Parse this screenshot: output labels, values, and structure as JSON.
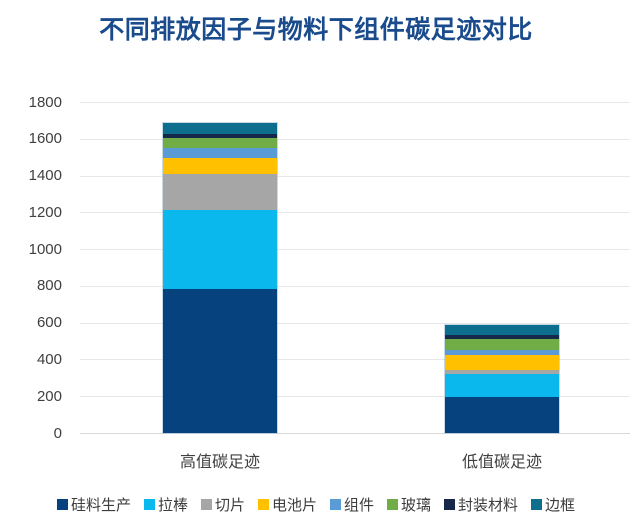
{
  "title": "不同排放因子与物料下组件碳足迹对比",
  "colors": {
    "title_text": "#1a4b8c",
    "axis_text": "#3f3f3f",
    "category_text": "#404040",
    "legend_text": "#3d3d3d",
    "gridline": "#e7e7e7",
    "baseline": "#d9d9d9",
    "background": "#ffffff"
  },
  "chart_data": {
    "type": "bar",
    "stacked": true,
    "title": "不同排放因子与物料下组件碳足迹对比",
    "categories": [
      "高值碳足迹",
      "低值碳足迹"
    ],
    "series": [
      {
        "name": "硅料生产",
        "color": "#05427e",
        "values": [
          785,
          195
        ]
      },
      {
        "name": "拉棒",
        "color": "#0bb8ee",
        "values": [
          430,
          125
        ]
      },
      {
        "name": "切片",
        "color": "#a6a6a6",
        "values": [
          195,
          22
        ]
      },
      {
        "name": "电池片",
        "color": "#ffc000",
        "values": [
          87,
          82
        ]
      },
      {
        "name": "组件",
        "color": "#5b9bd5",
        "values": [
          52,
          27
        ]
      },
      {
        "name": "玻璃",
        "color": "#70ad47",
        "values": [
          54,
          60
        ]
      },
      {
        "name": "封装材料",
        "color": "#16284a",
        "values": [
          24,
          22
        ]
      },
      {
        "name": "边框",
        "color": "#0d6e8d",
        "values": [
          58,
          54
        ]
      }
    ],
    "totals": [
      1685,
      587
    ],
    "xlabel": "",
    "ylabel": "",
    "ylim": [
      0,
      1800
    ],
    "yticks": [
      0,
      200,
      400,
      600,
      800,
      1000,
      1200,
      1400,
      1600,
      1800
    ],
    "grid": true,
    "legend_position": "bottom"
  }
}
